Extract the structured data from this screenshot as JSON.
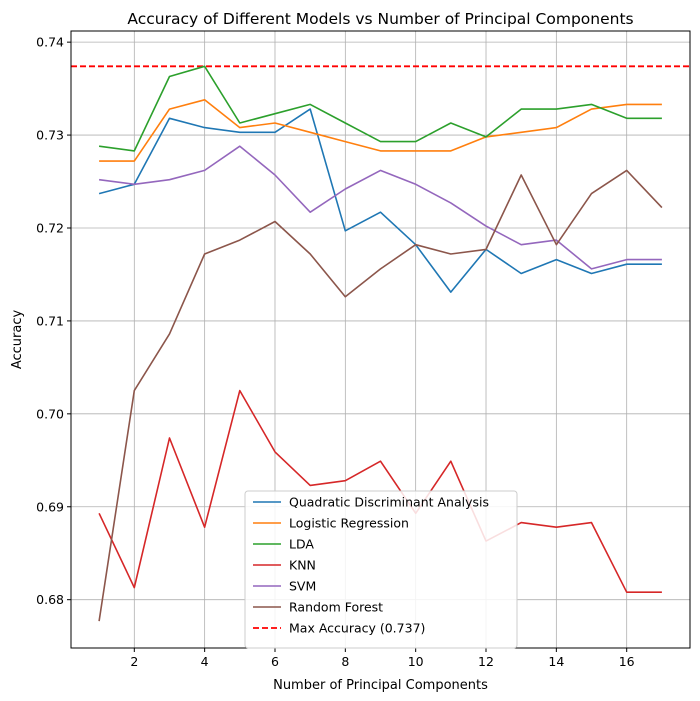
{
  "chart_data": {
    "type": "line",
    "title": "Accuracy of Different Models vs Number of Principal Components",
    "xlabel": "Number of Principal Components",
    "ylabel": "Accuracy",
    "xlim": [
      0.2,
      17.8
    ],
    "ylim": [
      0.6748,
      0.7412
    ],
    "xticks": [
      2,
      4,
      6,
      8,
      10,
      12,
      14,
      16
    ],
    "yticks": [
      0.68,
      0.69,
      0.7,
      0.71,
      0.72,
      0.73,
      0.74
    ],
    "ytick_labels": [
      "0.68",
      "0.69",
      "0.70",
      "0.71",
      "0.72",
      "0.73",
      "0.74"
    ],
    "grid": true,
    "legend_position": "lower-center",
    "x": [
      1,
      2,
      3,
      4,
      5,
      6,
      7,
      8,
      9,
      10,
      11,
      12,
      13,
      14,
      15,
      16,
      17
    ],
    "series": [
      {
        "name": "Quadratic Discriminant Analysis",
        "color": "#1f77b4",
        "values": [
          0.7237,
          0.7247,
          0.7318,
          0.7308,
          0.7303,
          0.7303,
          0.7328,
          0.7197,
          0.7217,
          0.7182,
          0.7131,
          0.7177,
          0.7151,
          0.7166,
          0.7151,
          0.7161,
          0.7161
        ]
      },
      {
        "name": "Logistic Regression",
        "color": "#ff7f0e",
        "values": [
          0.7272,
          0.7272,
          0.7328,
          0.7338,
          0.7308,
          0.7313,
          0.7303,
          0.7293,
          0.7283,
          0.7283,
          0.7283,
          0.7298,
          0.7303,
          0.7308,
          0.7328,
          0.7333,
          0.7333
        ]
      },
      {
        "name": "LDA",
        "color": "#2ca02c",
        "values": [
          0.7288,
          0.7283,
          0.7363,
          0.7374,
          0.7313,
          0.7323,
          0.7333,
          0.7313,
          0.7293,
          0.7293,
          0.7313,
          0.7298,
          0.7328,
          0.7328,
          0.7333,
          0.7318,
          0.7318
        ]
      },
      {
        "name": "KNN",
        "color": "#d62728",
        "values": [
          0.6893,
          0.6813,
          0.6974,
          0.6878,
          0.7025,
          0.6959,
          0.6923,
          0.6928,
          0.6949,
          0.6893,
          0.6949,
          0.6863,
          0.6883,
          0.6878,
          0.6883,
          0.6808,
          0.6808
        ]
      },
      {
        "name": "SVM",
        "color": "#9467bd",
        "values": [
          0.7252,
          0.7247,
          0.7252,
          0.7262,
          0.7288,
          0.7257,
          0.7217,
          0.7242,
          0.7262,
          0.7247,
          0.7227,
          0.7202,
          0.7182,
          0.7187,
          0.7156,
          0.7166,
          0.7166
        ]
      },
      {
        "name": "Random Forest",
        "color": "#8c564b",
        "values": [
          0.6777,
          0.7025,
          0.7086,
          0.7172,
          0.7187,
          0.7207,
          0.7172,
          0.7126,
          0.7156,
          0.7182,
          0.7172,
          0.7177,
          0.7257,
          0.7182,
          0.7237,
          0.7262,
          0.7222
        ]
      }
    ],
    "reference_line": {
      "name": "Max Accuracy (0.737)",
      "value": 0.7374,
      "color": "#ff0000",
      "style": "dashed"
    }
  }
}
